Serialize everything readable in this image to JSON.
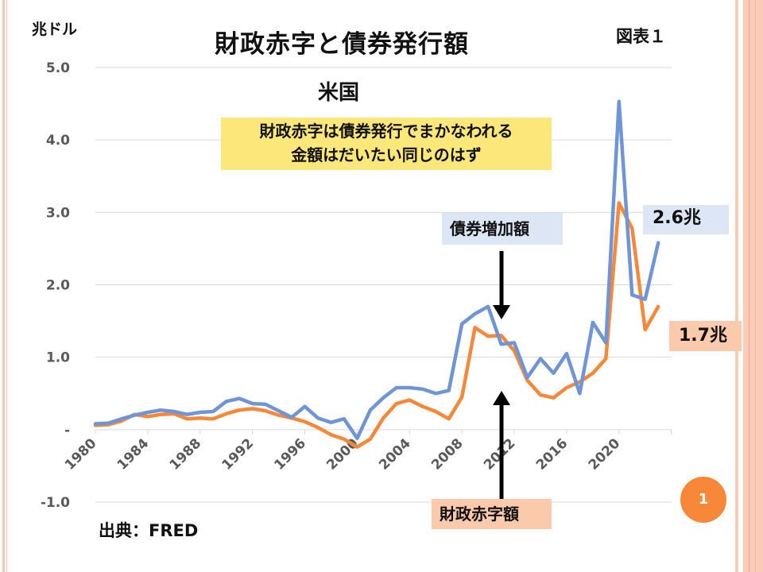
{
  "slide": {
    "title": "財政赤字と債券発行額",
    "figure_label": "図表１",
    "unit_label": "兆ドル",
    "subtitle": "米国",
    "note": [
      "財政赤字は債券発行でまかなわれる",
      "金額はだいたい同じのはず"
    ],
    "bond_annotation": "債券増加額",
    "deficit_annotation": "財政赤字額",
    "bond_latest_label": "2.6兆",
    "deficit_latest_label": "1.7兆",
    "source": "出典：FRED",
    "page_number": "1",
    "colors": {
      "bond": "#6f95d6",
      "deficit": "#f7883a",
      "note_bg": "#fbe77a",
      "bond_label_bg": "#dde6f4",
      "deficit_label_bg": "#fbc9ac",
      "border": "#fbcbb8"
    }
  },
  "chart_data": {
    "type": "line",
    "title": "財政赤字と債券発行額",
    "subtitle": "米国",
    "xlabel": "",
    "ylabel": "兆ドル",
    "ylim": [
      -1.0,
      5.0
    ],
    "yticks": [
      5.0,
      4.0,
      3.0,
      2.0,
      1.0,
      0,
      -1.0
    ],
    "ytick_labels": [
      "5.0",
      "4.0",
      "3.0",
      "2.0",
      "1.0",
      "-",
      "-1.0"
    ],
    "xticks": [
      1980,
      1984,
      1988,
      1992,
      1996,
      2000,
      2004,
      2008,
      2012,
      2016,
      2020
    ],
    "xtick_labels": [
      "1980",
      "1984",
      "1988",
      "1992",
      "1996",
      "2000",
      "2004",
      "2008",
      "2012",
      "2016",
      "2020"
    ],
    "xlim": [
      1980,
      2024
    ],
    "grid": true,
    "x": [
      1980,
      1981,
      1982,
      1983,
      1984,
      1985,
      1986,
      1987,
      1988,
      1989,
      1990,
      1991,
      1992,
      1993,
      1994,
      1995,
      1996,
      1997,
      1998,
      1999,
      2000,
      2001,
      2002,
      2003,
      2004,
      2005,
      2006,
      2007,
      2008,
      2009,
      2010,
      2011,
      2012,
      2013,
      2014,
      2015,
      2016,
      2017,
      2018,
      2019,
      2020,
      2021,
      2022,
      2023
    ],
    "series": [
      {
        "name": "債券増加額",
        "color": "#6f95d6",
        "values": [
          0.08,
          0.09,
          0.15,
          0.2,
          0.24,
          0.27,
          0.25,
          0.21,
          0.24,
          0.25,
          0.39,
          0.43,
          0.36,
          0.35,
          0.26,
          0.17,
          0.32,
          0.16,
          0.1,
          0.15,
          -0.12,
          0.27,
          0.44,
          0.58,
          0.58,
          0.56,
          0.5,
          0.54,
          1.46,
          1.6,
          1.7,
          1.18,
          1.2,
          0.72,
          0.98,
          0.78,
          1.05,
          0.5,
          1.48,
          1.2,
          4.53,
          1.86,
          1.8,
          2.58
        ]
      },
      {
        "name": "財政赤字額",
        "color": "#f7883a",
        "values": [
          0.06,
          0.07,
          0.12,
          0.21,
          0.18,
          0.21,
          0.22,
          0.15,
          0.16,
          0.15,
          0.22,
          0.27,
          0.29,
          0.26,
          0.2,
          0.16,
          0.11,
          0.03,
          -0.07,
          -0.13,
          -0.24,
          -0.13,
          0.16,
          0.36,
          0.41,
          0.32,
          0.25,
          0.15,
          0.45,
          1.41,
          1.29,
          1.3,
          1.09,
          0.68,
          0.48,
          0.44,
          0.58,
          0.66,
          0.78,
          0.98,
          3.13,
          2.78,
          1.38,
          1.7
        ]
      }
    ],
    "annotations": [
      "財政赤字は債券発行でまかなわれる 金額はだいたい同じのはず",
      "債券増加額",
      "財政赤字額",
      "2.6兆",
      "1.7兆"
    ],
    "source": "出典：FRED"
  }
}
